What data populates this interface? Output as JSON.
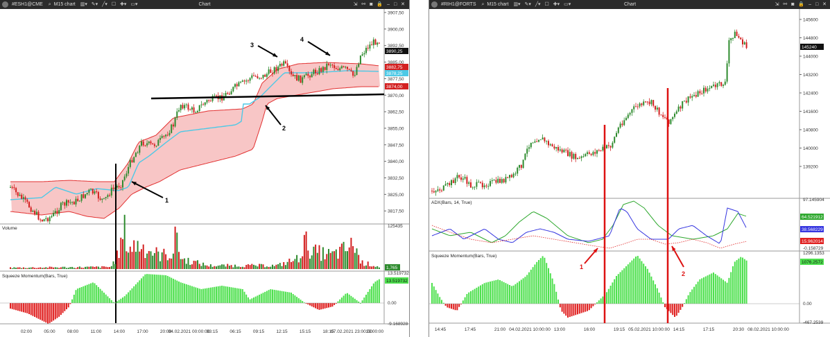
{
  "left_window": {
    "symbol": "#ESH1@CME",
    "timeframe": "M15 chart",
    "title": "Chart",
    "price_axis": [
      "3907,50",
      "3900,00",
      "3892,50",
      "3885,00",
      "3877,50",
      "3870,00",
      "3862,50",
      "3855,00",
      "3847,50",
      "3840,00",
      "3832,50",
      "3825,00",
      "3817,50"
    ],
    "price_tags": {
      "last": "3890,25",
      "upper": "3882,75",
      "mid": "3878,25",
      "lower": "3874,00"
    },
    "time_axis": [
      "02:00",
      "05:00",
      "08:00",
      "11:00",
      "14:00",
      "17:00",
      "20:00",
      "04.02.2021 00:00:00",
      "03:15",
      "06:15",
      "09:15",
      "12:15",
      "15:15",
      "18:15",
      "07.02.2021 23:00:00",
      "23:00:00"
    ],
    "volume": {
      "label": "Volume",
      "max": "125435",
      "value": "1,765"
    },
    "squeeze": {
      "label": "Squeeze Momentum(Bars, True)",
      "max": "13.519732",
      "value": "13.519732",
      "zero": "0.00",
      "min": "-9.168928"
    },
    "annotations": [
      "1",
      "2",
      "3",
      "4"
    ]
  },
  "right_window": {
    "symbol": "#RIH1@FORTS",
    "timeframe": "M15 chart",
    "title": "Chart",
    "price_axis": [
      "145600",
      "144800",
      "144000",
      "143200",
      "142400",
      "141600",
      "140800",
      "140000",
      "139200"
    ],
    "price_tags": {
      "last": "145240"
    },
    "adx": {
      "label": "ADX(Bars, 14, True)",
      "max": "97.145904",
      "v1": "64.521912",
      "v2": "38.568229",
      "v3": "15.962014",
      "min": "-0.158729"
    },
    "squeeze": {
      "label": "Squeeze Momentum(Bars, True)",
      "max": "1296.1353",
      "value": "1076.2572",
      "zero": "0.00",
      "min": "-467.2539"
    },
    "time_axis": [
      "14:45",
      "17:45",
      "21:00",
      "04.02.2021 10:00:00",
      "13:00",
      "16:00",
      "19:15",
      "05.02.2021 10:00:00",
      "14:15",
      "17:15",
      "20:30",
      "08.02.2021 10:00:00"
    ],
    "annotations": [
      "1",
      "2"
    ]
  },
  "colors": {
    "bull": "#2e8b2e",
    "bear": "#d32020",
    "cloud": "#f6b3b3",
    "cloud_edge": "#e23030",
    "cyan": "#4dc9e6",
    "mom_up": "#4de04d",
    "mom_down": "#e02020",
    "adx_green": "#2ea82e",
    "adx_blue": "#3535e0",
    "adx_red": "#e02020",
    "marker": "#dd1111",
    "toolbar": "#2b2b2b"
  }
}
